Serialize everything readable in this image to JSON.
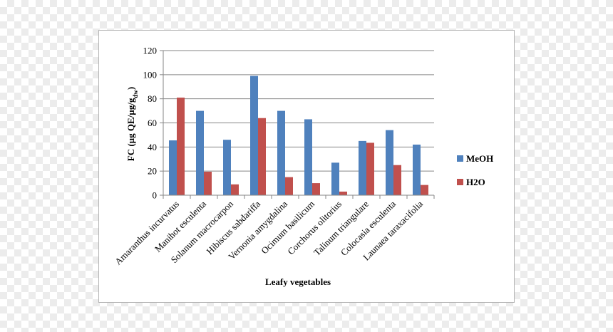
{
  "chart_data": {
    "type": "bar",
    "title": "",
    "xlabel": "Leafy vegetables",
    "ylabel": "FC (µg QE/µg/g",
    "ylabel_sub": "dw",
    "ylabel_end": ")",
    "ylim": [
      0,
      120
    ],
    "yticks": [
      0,
      20,
      40,
      60,
      80,
      100,
      120
    ],
    "grid": true,
    "legend_position": "right",
    "categories": [
      "Amaranthus incurvatus",
      "Manihot esculenta",
      "Solanum macrocarpon",
      "Hibiscus sabdariffa",
      "Vernonia  amygdalina",
      "Ocimum basilicum",
      "Corchorus olitorius",
      "Talinum triangulare",
      "Colocasia esculenta",
      "Launaea taraxacifolia"
    ],
    "series": [
      {
        "name": "MeOH",
        "color": "#4f81bd",
        "values": [
          45.5,
          70,
          46,
          99,
          70,
          63,
          27,
          45,
          54,
          42
        ]
      },
      {
        "name": "H2O",
        "color": "#c0504d",
        "values": [
          81,
          19.5,
          9,
          64,
          15,
          10,
          3,
          43.5,
          25,
          8.5
        ]
      }
    ]
  }
}
